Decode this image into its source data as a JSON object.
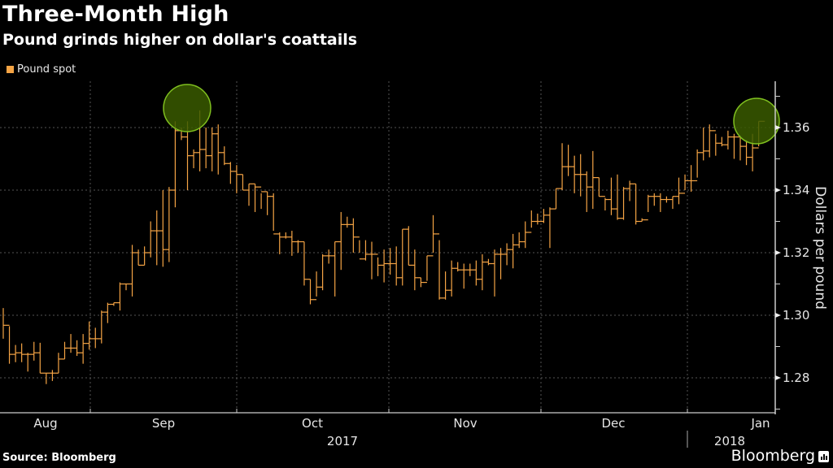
{
  "header": {
    "title": "Three-Month High",
    "subtitle": "Pound grinds higher on dollar's coattails"
  },
  "legend": {
    "label": "Pound spot",
    "color": "#f5a445"
  },
  "footer": {
    "source": "Source: Bloomberg",
    "brand": "Bloomberg"
  },
  "colors": {
    "series": "#f5a445",
    "highlight_fill": "#3a5a00",
    "highlight_stroke": "#7fbf1f",
    "grid": "#555555",
    "axis": "#cccccc"
  },
  "chart_data": {
    "type": "ohlc-step",
    "title": "Three-Month High",
    "subtitle": "Pound grinds higher on dollar's coattails",
    "xlabel": "",
    "ylabel": "Dollars per pound",
    "ylim": [
      1.2675,
      1.3725
    ],
    "y_ticks": [
      1.28,
      1.3,
      1.32,
      1.34,
      1.36
    ],
    "y_tick_labels": [
      "1.28",
      "1.30",
      "1.32",
      "1.34",
      "1.36"
    ],
    "grid": true,
    "legend_position": "top-left",
    "x_month_labels": [
      "Aug",
      "Sep",
      "Oct",
      "Nov",
      "Dec",
      "Jan"
    ],
    "x_year_labels": [
      "2017",
      "2018"
    ],
    "month_boundaries_index": [
      13,
      34,
      56,
      78,
      99
    ],
    "series": [
      {
        "name": "Pound spot",
        "fields": [
          "high",
          "low",
          "close"
        ],
        "values": [
          [
            1.3023,
            1.2925,
            1.2968
          ],
          [
            1.2965,
            1.2845,
            1.2875
          ],
          [
            1.2905,
            1.285,
            1.288
          ],
          [
            1.291,
            1.285,
            1.2875
          ],
          [
            1.288,
            1.282,
            1.2875
          ],
          [
            1.2915,
            1.2855,
            1.288
          ],
          [
            1.2912,
            1.2815,
            1.2815
          ],
          [
            1.2815,
            1.278,
            1.2815
          ],
          [
            1.2825,
            1.279,
            1.2815
          ],
          [
            1.288,
            1.2815,
            1.286
          ],
          [
            1.2915,
            1.286,
            1.2895
          ],
          [
            1.294,
            1.288,
            1.2895
          ],
          [
            1.292,
            1.287,
            1.288
          ],
          [
            1.294,
            1.2845,
            1.291
          ],
          [
            1.298,
            1.289,
            1.2925
          ],
          [
            1.296,
            1.2895,
            1.2925
          ],
          [
            1.3015,
            1.291,
            1.301
          ],
          [
            1.304,
            1.2975,
            1.3035
          ],
          [
            1.304,
            1.303,
            1.304
          ],
          [
            1.3105,
            1.3015,
            1.31
          ],
          [
            1.31,
            1.308,
            1.31
          ],
          [
            1.3225,
            1.306,
            1.32
          ],
          [
            1.321,
            1.316,
            1.316
          ],
          [
            1.322,
            1.316,
            1.32
          ],
          [
            1.33,
            1.3185,
            1.327
          ],
          [
            1.3335,
            1.316,
            1.327
          ],
          [
            1.34,
            1.3155,
            1.321
          ],
          [
            1.341,
            1.317,
            1.34
          ],
          [
            1.362,
            1.3345,
            1.359
          ],
          [
            1.36,
            1.356,
            1.357
          ],
          [
            1.362,
            1.34,
            1.351
          ],
          [
            1.353,
            1.347,
            1.352
          ],
          [
            1.3655,
            1.346,
            1.353
          ],
          [
            1.36,
            1.347,
            1.351
          ],
          [
            1.36,
            1.346,
            1.358
          ],
          [
            1.361,
            1.345,
            1.352
          ],
          [
            1.354,
            1.348,
            1.3485
          ],
          [
            1.349,
            1.342,
            1.346
          ],
          [
            1.348,
            1.339,
            1.345
          ],
          [
            1.345,
            1.34,
            1.34
          ],
          [
            1.342,
            1.335,
            1.342
          ],
          [
            1.342,
            1.333,
            1.341
          ],
          [
            1.339,
            1.334,
            1.3395
          ],
          [
            1.3395,
            1.332,
            1.338
          ],
          [
            1.339,
            1.327,
            1.326
          ],
          [
            1.3265,
            1.3195,
            1.325
          ],
          [
            1.3265,
            1.3245,
            1.325
          ],
          [
            1.327,
            1.319,
            1.3235
          ],
          [
            1.324,
            1.32,
            1.3235
          ],
          [
            1.3235,
            1.3095,
            1.3115
          ],
          [
            1.3115,
            1.3035,
            1.305
          ],
          [
            1.314,
            1.306,
            1.309
          ],
          [
            1.3195,
            1.308,
            1.319
          ],
          [
            1.321,
            1.3165,
            1.319
          ],
          [
            1.3235,
            1.306,
            1.3235
          ],
          [
            1.333,
            1.3145,
            1.329
          ],
          [
            1.3315,
            1.328,
            1.329
          ],
          [
            1.331,
            1.32,
            1.325
          ],
          [
            1.324,
            1.32,
            1.318
          ],
          [
            1.324,
            1.3175,
            1.3195
          ],
          [
            1.3235,
            1.3115,
            1.3195
          ],
          [
            1.3185,
            1.3125,
            1.316
          ],
          [
            1.321,
            1.3105,
            1.3165
          ],
          [
            1.3215,
            1.313,
            1.3165
          ],
          [
            1.322,
            1.3095,
            1.312
          ],
          [
            1.3275,
            1.3095,
            1.3275
          ],
          [
            1.3285,
            1.316,
            1.316
          ],
          [
            1.321,
            1.308,
            1.312
          ],
          [
            1.312,
            1.309,
            1.3105
          ],
          [
            1.319,
            1.311,
            1.319
          ],
          [
            1.332,
            1.32,
            1.326
          ],
          [
            1.324,
            1.305,
            1.3055
          ],
          [
            1.314,
            1.305,
            1.308
          ],
          [
            1.3175,
            1.306,
            1.315
          ],
          [
            1.317,
            1.314,
            1.3145
          ],
          [
            1.3165,
            1.3085,
            1.3145
          ],
          [
            1.3165,
            1.3125,
            1.3145
          ],
          [
            1.3175,
            1.3095,
            1.3115
          ],
          [
            1.3195,
            1.308,
            1.317
          ],
          [
            1.318,
            1.316,
            1.3165
          ],
          [
            1.321,
            1.306,
            1.3195
          ],
          [
            1.3215,
            1.3115,
            1.3195
          ],
          [
            1.323,
            1.316,
            1.321
          ],
          [
            1.326,
            1.315,
            1.3225
          ],
          [
            1.3265,
            1.3215,
            1.3235
          ],
          [
            1.33,
            1.3215,
            1.3265
          ],
          [
            1.3335,
            1.328,
            1.33
          ],
          [
            1.3325,
            1.329,
            1.33
          ],
          [
            1.334,
            1.3295,
            1.332
          ],
          [
            1.3345,
            1.3215,
            1.334
          ],
          [
            1.3405,
            1.334,
            1.3405
          ],
          [
            1.355,
            1.34,
            1.3475
          ],
          [
            1.3545,
            1.3445,
            1.3475
          ],
          [
            1.351,
            1.339,
            1.345
          ],
          [
            1.3515,
            1.338,
            1.345
          ],
          [
            1.346,
            1.333,
            1.341
          ],
          [
            1.3525,
            1.334,
            1.344
          ],
          [
            1.344,
            1.338,
            1.338
          ],
          [
            1.3375,
            1.3335,
            1.337
          ],
          [
            1.344,
            1.332,
            1.334
          ],
          [
            1.345,
            1.3305,
            1.331
          ],
          [
            1.341,
            1.3305,
            1.3405
          ],
          [
            1.343,
            1.3365,
            1.342
          ],
          [
            1.342,
            1.329,
            1.33
          ],
          [
            1.331,
            1.33,
            1.3305
          ],
          [
            1.3385,
            1.333,
            1.338
          ],
          [
            1.339,
            1.335,
            1.338
          ],
          [
            1.339,
            1.333,
            1.337
          ],
          [
            1.338,
            1.336,
            1.337
          ],
          [
            1.338,
            1.334,
            1.338
          ],
          [
            1.344,
            1.3355,
            1.339
          ],
          [
            1.345,
            1.34,
            1.343
          ],
          [
            1.348,
            1.3395,
            1.343
          ],
          [
            1.353,
            1.344,
            1.352
          ],
          [
            1.36,
            1.3495,
            1.3525
          ],
          [
            1.361,
            1.3505,
            1.359
          ],
          [
            1.358,
            1.351,
            1.355
          ],
          [
            1.357,
            1.354,
            1.3545
          ],
          [
            1.359,
            1.353,
            1.357
          ],
          [
            1.358,
            1.35,
            1.357
          ],
          [
            1.3575,
            1.3495,
            1.354
          ],
          [
            1.356,
            1.348,
            1.3505
          ],
          [
            1.358,
            1.346,
            1.3535
          ],
          [
            1.362,
            1.354,
            1.362
          ]
        ]
      }
    ],
    "annotations": [
      {
        "type": "circle",
        "label": "September peak",
        "at_index": 32,
        "value": 1.3655
      },
      {
        "type": "circle",
        "label": "January three-month high",
        "at_index": 123,
        "value": 1.362
      }
    ]
  }
}
